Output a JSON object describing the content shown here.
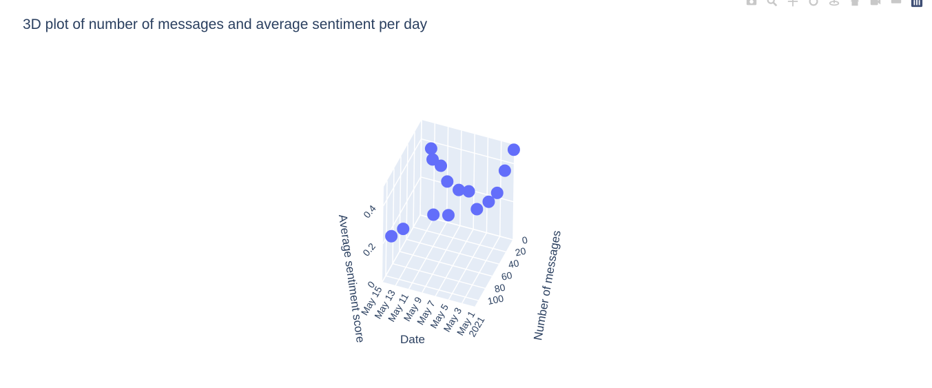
{
  "title": "3D plot of number of messages and average sentiment per day",
  "modebar": {
    "icons": [
      "camera-icon",
      "zoom-icon",
      "pan-icon",
      "orbit-icon",
      "turntable-icon",
      "home-icon",
      "camera-view-icon",
      "hover-icon",
      "plotly-logo-icon"
    ]
  },
  "colors": {
    "marker": "#636efa",
    "pane": "#e5ecf6",
    "grid": "#ffffff",
    "text": "#2a3f5f"
  },
  "chart_data": {
    "type": "scatter3d",
    "title": "3D plot of number of messages and average sentiment per day",
    "x_axis": {
      "title": "Date",
      "ticks": [
        "May 1\n2021",
        "May 3",
        "May 5",
        "May 7",
        "May 9",
        "May 11",
        "May 13",
        "May 15"
      ],
      "range_days": [
        0,
        14
      ]
    },
    "y_axis": {
      "title": "Number of messages",
      "ticks": [
        "0",
        "20",
        "40",
        "60",
        "80",
        "100"
      ],
      "range": [
        0,
        110
      ]
    },
    "z_axis": {
      "title": "Average sentiment score",
      "ticks": [
        "0",
        "0.2",
        "0.4"
      ],
      "range": [
        0,
        0.5
      ]
    },
    "points": [
      {
        "date": "May 1 2021",
        "messages": 2,
        "sentiment": 0.48
      },
      {
        "date": "May 2 2021",
        "messages": 8,
        "sentiment": 0.38
      },
      {
        "date": "May 3 2021",
        "messages": 10,
        "sentiment": 0.26
      },
      {
        "date": "May 4 2021",
        "messages": 15,
        "sentiment": 0.22
      },
      {
        "date": "May 5 2021",
        "messages": 30,
        "sentiment": 0.22
      },
      {
        "date": "May 6 2021",
        "messages": 35,
        "sentiment": 0.32
      },
      {
        "date": "May 7 2021",
        "messages": 45,
        "sentiment": 0.35
      },
      {
        "date": "May 8 2021",
        "messages": 55,
        "sentiment": 0.24
      },
      {
        "date": "May 9 2021",
        "messages": 40,
        "sentiment": 0.36
      },
      {
        "date": "May 10 2021",
        "messages": 60,
        "sentiment": 0.24
      },
      {
        "date": "May 11 2021",
        "messages": 20,
        "sentiment": 0.36
      },
      {
        "date": "May 12 2021",
        "messages": 25,
        "sentiment": 0.4
      },
      {
        "date": "May 13 2021",
        "messages": 10,
        "sentiment": 0.4
      },
      {
        "date": "May 14 2021",
        "messages": 70,
        "sentiment": 0.16
      },
      {
        "date": "May 15 2021",
        "messages": 85,
        "sentiment": 0.16
      }
    ]
  }
}
